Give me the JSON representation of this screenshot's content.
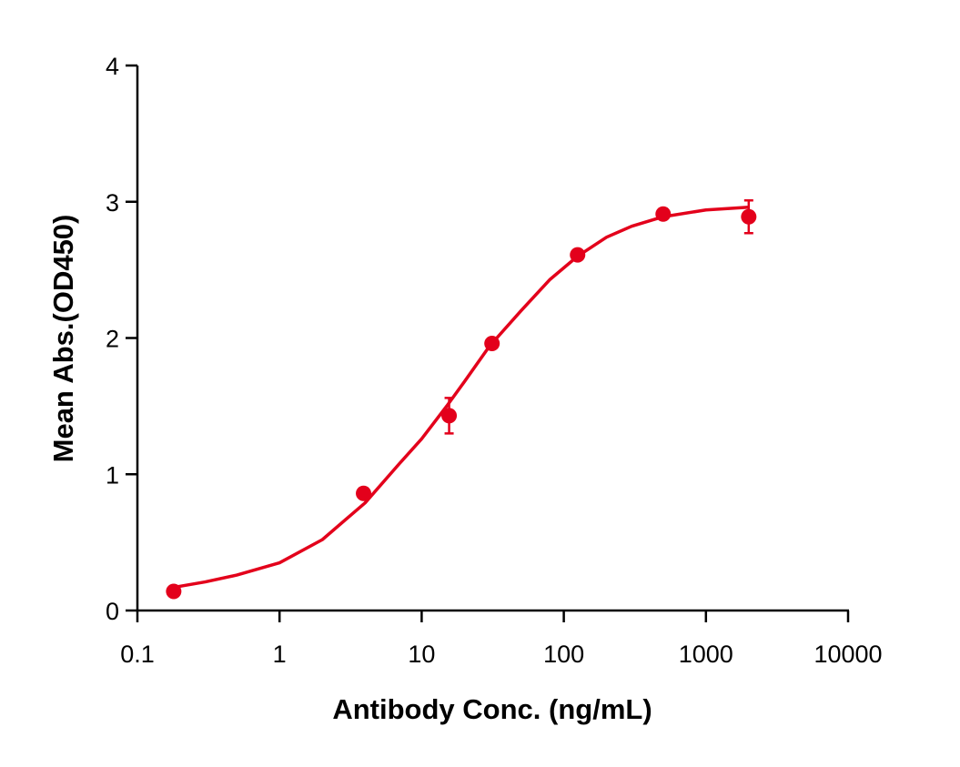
{
  "chart_data": {
    "type": "scatter",
    "x_label": "Antibody Conc. (ng/mL)",
    "y_label": "Mean Abs.(OD450)",
    "x_scale": "log",
    "xlim": [
      0.1,
      10000
    ],
    "xticks": [
      0.1,
      1,
      10,
      100,
      1000,
      10000
    ],
    "ylim": [
      0,
      4
    ],
    "yticks": [
      0,
      1,
      2,
      3,
      4
    ],
    "grid": false,
    "series": [
      {
        "color": "#e3001b",
        "x": [
          0.18,
          3.9,
          15.6,
          31.25,
          125,
          500,
          2000
        ],
        "values": [
          0.14,
          0.86,
          1.43,
          1.96,
          2.61,
          2.91,
          2.89
        ],
        "errors": [
          0.02,
          0.03,
          0.13,
          0.03,
          0.03,
          0.03,
          0.12
        ]
      }
    ],
    "fit_curve": {
      "color": "#e3001b",
      "x": [
        0.18,
        0.3,
        0.5,
        1,
        2,
        4,
        7,
        10,
        15,
        20,
        30,
        50,
        80,
        125,
        200,
        300,
        500,
        1000,
        2000
      ],
      "values": [
        0.17,
        0.21,
        0.26,
        0.35,
        0.52,
        0.79,
        1.08,
        1.26,
        1.5,
        1.68,
        1.94,
        2.2,
        2.43,
        2.6,
        2.74,
        2.82,
        2.89,
        2.94,
        2.96
      ]
    }
  }
}
